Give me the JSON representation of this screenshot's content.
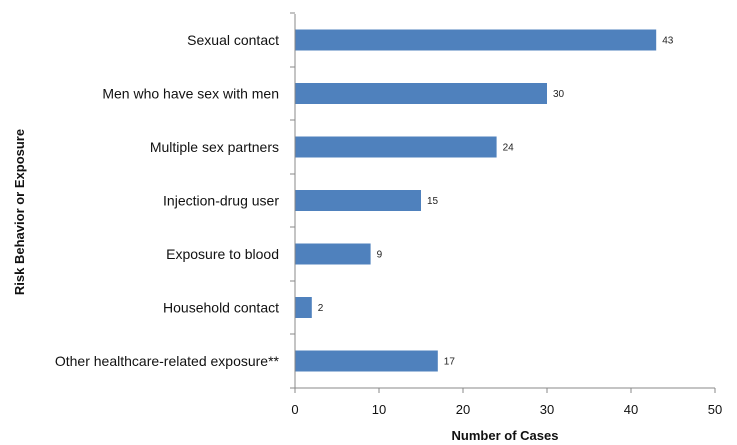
{
  "chart_data": {
    "type": "bar",
    "orientation": "horizontal",
    "categories": [
      "Sexual contact",
      "Men who have sex with men",
      "Multiple sex partners",
      "Injection-drug user",
      "Exposure to blood",
      "Household contact",
      "Other healthcare-related exposure**"
    ],
    "values": [
      43,
      30,
      24,
      15,
      9,
      2,
      17
    ],
    "xlabel": "Number of Cases",
    "ylabel": "Risk Behavior or Exposure",
    "xlim": [
      0,
      50
    ],
    "xticks": [
      "0",
      "10",
      "20",
      "30",
      "40",
      "50"
    ],
    "grid": false,
    "data_labels": true,
    "bar_color": "#4f81bd"
  }
}
